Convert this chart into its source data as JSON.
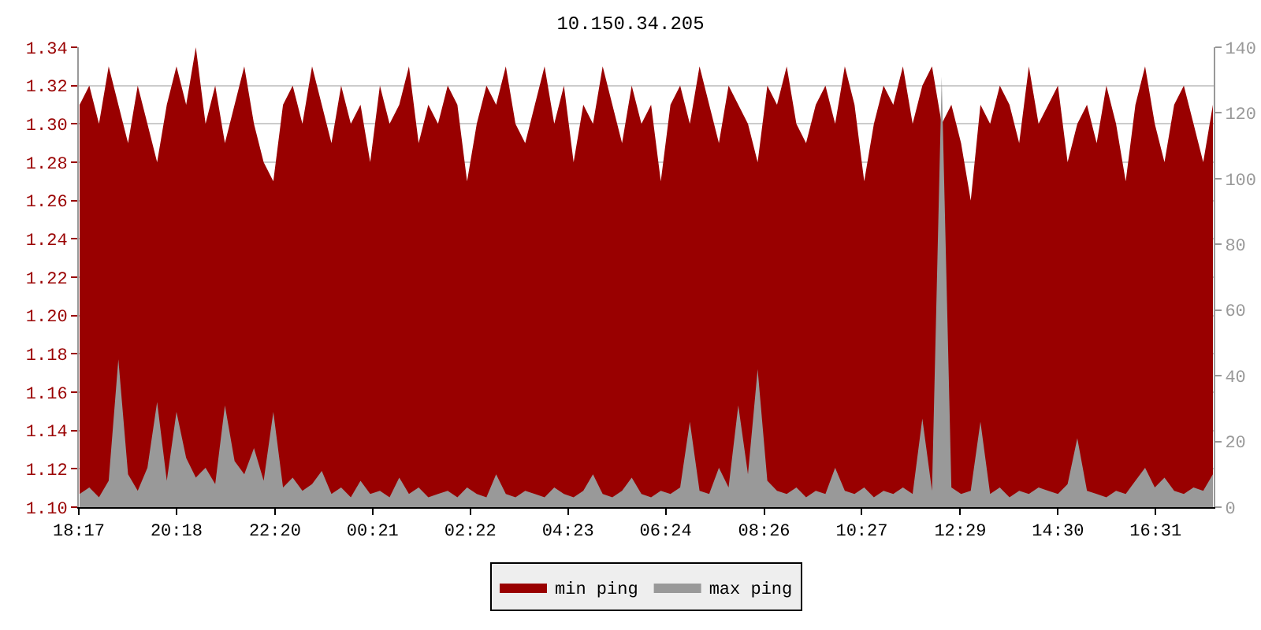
{
  "chart_data": {
    "type": "area",
    "title": "10.150.34.205",
    "x": [
      "--01-01T18:18",
      "--01-01T18:30",
      "--01-01T18:42",
      "--01-01T18:54",
      "--01-01T19:06",
      "--01-01T19:18",
      "--01-01T19:30",
      "--01-01T19:42",
      "--01-01T19:54",
      "--01-01T20:06",
      "--01-01T20:18",
      "--01-01T20:30",
      "--01-01T20:42",
      "--01-01T20:54",
      "--01-01T21:06",
      "--01-01T21:18",
      "--01-01T21:30",
      "--01-01T21:42",
      "--01-01T21:54",
      "--01-01T22:06",
      "--01-01T22:18",
      "--01-01T22:30",
      "--01-01T22:42",
      "--01-01T22:54",
      "--01-01T23:06",
      "--01-01T23:18",
      "--01-01T23:30",
      "--01-01T23:42",
      "--01-01T23:54",
      "--01-02T00:06",
      "--01-02T00:18",
      "--01-02T00:30",
      "--01-02T00:42",
      "--01-02T00:54",
      "--01-02T01:06",
      "--01-02T01:18",
      "--01-02T01:30",
      "--01-02T01:42",
      "--01-02T01:54",
      "--01-02T02:06",
      "--01-02T02:18",
      "--01-02T02:30",
      "--01-02T02:42",
      "--01-02T02:54",
      "--01-02T03:06",
      "--01-02T03:18",
      "--01-02T03:30",
      "--01-02T03:42",
      "--01-02T03:54",
      "--01-02T04:06",
      "--01-02T04:18",
      "--01-02T04:30",
      "--01-02T04:42",
      "--01-02T04:54",
      "--01-02T05:06",
      "--01-02T05:18",
      "--01-02T05:30",
      "--01-02T05:42",
      "--01-02T05:54",
      "--01-02T06:06",
      "--01-02T06:18",
      "--01-02T06:30",
      "--01-02T06:42",
      "--01-02T06:54",
      "--01-02T07:06",
      "--01-02T07:18",
      "--01-02T07:30",
      "--01-02T07:42",
      "--01-02T07:54",
      "--01-02T08:06",
      "--01-02T08:18",
      "--01-02T08:30",
      "--01-02T08:42",
      "--01-02T08:54",
      "--01-02T09:06",
      "--01-02T09:18",
      "--01-02T09:30",
      "--01-02T09:42",
      "--01-02T09:54",
      "--01-02T10:06",
      "--01-02T10:18",
      "--01-02T10:30",
      "--01-02T10:42",
      "--01-02T10:54",
      "--01-02T11:06",
      "--01-02T11:18",
      "--01-02T11:30",
      "--01-02T11:42",
      "--01-02T11:54",
      "--01-02T12:06",
      "--01-02T12:18",
      "--01-02T12:30",
      "--01-02T12:42",
      "--01-02T12:54",
      "--01-02T13:06",
      "--01-02T13:18",
      "--01-02T13:30",
      "--01-02T13:42",
      "--01-02T13:54",
      "--01-02T14:06",
      "--01-02T14:18",
      "--01-02T14:30",
      "--01-02T14:42",
      "--01-02T14:54",
      "--01-02T15:06",
      "--01-02T15:18",
      "--01-02T15:30",
      "--01-02T15:42",
      "--01-02T15:54",
      "--01-02T16:06",
      "--01-02T16:18",
      "--01-02T16:30",
      "--01-02T16:42",
      "--01-02T16:54",
      "--01-02T17:06",
      "--01-02T17:18",
      "--01-02T17:30",
      "--01-02T17:42"
    ],
    "series": [
      {
        "name": "min ping",
        "color": "#990000",
        "values": [
          1.31,
          1.32,
          1.3,
          1.33,
          1.31,
          1.29,
          1.32,
          1.3,
          1.28,
          1.31,
          1.33,
          1.31,
          1.34,
          1.3,
          1.32,
          1.29,
          1.31,
          1.33,
          1.3,
          1.28,
          1.27,
          1.31,
          1.32,
          1.3,
          1.33,
          1.31,
          1.29,
          1.32,
          1.3,
          1.31,
          1.28,
          1.32,
          1.3,
          1.31,
          1.33,
          1.29,
          1.31,
          1.3,
          1.32,
          1.31,
          1.27,
          1.3,
          1.32,
          1.31,
          1.33,
          1.3,
          1.29,
          1.31,
          1.33,
          1.3,
          1.32,
          1.28,
          1.31,
          1.3,
          1.33,
          1.31,
          1.29,
          1.32,
          1.3,
          1.31,
          1.27,
          1.31,
          1.32,
          1.3,
          1.33,
          1.31,
          1.29,
          1.32,
          1.31,
          1.3,
          1.28,
          1.32,
          1.31,
          1.33,
          1.3,
          1.29,
          1.31,
          1.32,
          1.3,
          1.33,
          1.31,
          1.27,
          1.3,
          1.32,
          1.31,
          1.33,
          1.3,
          1.32,
          1.33,
          1.3,
          1.31,
          1.29,
          1.26,
          1.31,
          1.3,
          1.32,
          1.31,
          1.29,
          1.33,
          1.3,
          1.31,
          1.32,
          1.28,
          1.3,
          1.31,
          1.29,
          1.32,
          1.3,
          1.27,
          1.31,
          1.33,
          1.3,
          1.28,
          1.31,
          1.32,
          1.3,
          1.28,
          1.31
        ]
      },
      {
        "name": "max ping",
        "color": "#999999",
        "axis": "y2",
        "values": [
          4,
          6,
          3,
          8,
          45,
          10,
          5,
          12,
          32,
          8,
          29,
          15,
          9,
          12,
          7,
          31,
          14,
          10,
          18,
          8,
          29,
          6,
          9,
          5,
          7,
          11,
          4,
          6,
          3,
          8,
          4,
          5,
          3,
          9,
          4,
          6,
          3,
          4,
          5,
          3,
          6,
          4,
          3,
          10,
          4,
          3,
          5,
          4,
          3,
          6,
          4,
          3,
          5,
          10,
          4,
          3,
          5,
          9,
          4,
          3,
          5,
          4,
          6,
          26,
          5,
          4,
          12,
          6,
          31,
          10,
          42,
          8,
          5,
          4,
          6,
          3,
          5,
          4,
          12,
          5,
          4,
          6,
          3,
          5,
          4,
          6,
          4,
          27,
          5,
          131,
          6,
          4,
          5,
          26,
          4,
          6,
          3,
          5,
          4,
          6,
          5,
          4,
          7,
          21,
          5,
          4,
          3,
          5,
          4,
          8,
          12,
          6,
          9,
          5,
          4,
          6,
          5,
          10
        ]
      }
    ],
    "xlim": [
      "--01-01T18:17",
      "--01-02T17:43"
    ],
    "xticks": [
      {
        "value": "--01-01T18:17",
        "label": "18:17"
      },
      {
        "value": "--01-01T20:18",
        "label": "20:18"
      },
      {
        "value": "--01-01T22:20",
        "label": "22:20"
      },
      {
        "value": "--01-02T00:21",
        "label": "00:21"
      },
      {
        "value": "--01-02T02:22",
        "label": "02:22"
      },
      {
        "value": "--01-02T04:23",
        "label": "04:23"
      },
      {
        "value": "--01-02T06:24",
        "label": "06:24"
      },
      {
        "value": "--01-02T08:26",
        "label": "08:26"
      },
      {
        "value": "--01-02T10:27",
        "label": "10:27"
      },
      {
        "value": "--01-02T12:29",
        "label": "12:29"
      },
      {
        "value": "--01-02T14:30",
        "label": "14:30"
      },
      {
        "value": "--01-02T16:31",
        "label": "16:31"
      }
    ],
    "ylim": [
      1.1,
      1.34
    ],
    "yticks": [
      {
        "value": 1.1,
        "label": "1.10"
      },
      1.12,
      1.14,
      1.16,
      1.18,
      {
        "value": 1.2,
        "label": "1.20"
      },
      1.22,
      1.24,
      1.26,
      1.28,
      {
        "value": 1.3,
        "label": "1.30"
      },
      1.32,
      1.34
    ],
    "y2lim": [
      0,
      140
    ],
    "y2ticks": [
      0,
      20,
      40,
      60,
      80,
      100,
      120,
      140
    ],
    "grid": "y",
    "legend": "bottom"
  }
}
